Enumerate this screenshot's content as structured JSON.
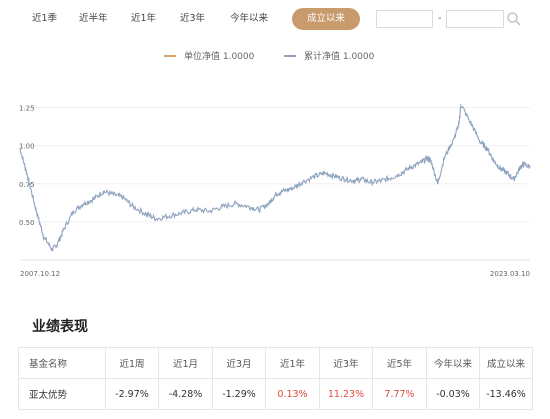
{
  "periods": {
    "items": [
      "近1季",
      "近半年",
      "近1年",
      "近3年",
      "今年以来",
      "成立以来"
    ],
    "active_index": 5,
    "active_color": "#c89a6c"
  },
  "date_range": {
    "start": "",
    "end": "",
    "separator": "-",
    "search_icon": "search-icon"
  },
  "legend": {
    "unit_nav": "单位净值 1.0000",
    "cum_nav": "累计净值 1.0000",
    "unit_nav_color": "#d9a46e",
    "cum_nav_color": "#8fa3bf"
  },
  "chart_data": {
    "type": "line",
    "y_ticks": [
      "1.25",
      "1.00",
      "0.75",
      "0.50"
    ],
    "ylim": [
      0.25,
      1.3
    ],
    "x_start_label": "2007.10.12",
    "x_end_label": "2023.03.10",
    "grid": true,
    "series": [
      {
        "name": "累计净值",
        "color": "#8fa3bf",
        "x": [
          2007.78,
          2007.95,
          2008.1,
          2008.3,
          2008.5,
          2008.75,
          2008.9,
          2009.1,
          2009.4,
          2009.7,
          2010.0,
          2010.3,
          2010.6,
          2010.9,
          2011.2,
          2011.6,
          2011.9,
          2012.3,
          2012.7,
          2013.1,
          2013.5,
          2013.9,
          2014.3,
          2014.7,
          2015.0,
          2015.3,
          2015.5,
          2015.7,
          2016.0,
          2016.3,
          2016.7,
          2017.0,
          2017.3,
          2017.6,
          2017.9,
          2018.1,
          2018.4,
          2018.7,
          2019.0,
          2019.3,
          2019.6,
          2019.9,
          2020.1,
          2020.2,
          2020.4,
          2020.6,
          2020.9,
          2021.05,
          2021.1,
          2021.4,
          2021.7,
          2021.9,
          2022.1,
          2022.3,
          2022.5,
          2022.7,
          2022.9,
          2023.0,
          2023.19
        ],
        "y": [
          0.98,
          0.85,
          0.72,
          0.55,
          0.4,
          0.32,
          0.35,
          0.45,
          0.57,
          0.62,
          0.65,
          0.7,
          0.68,
          0.66,
          0.6,
          0.55,
          0.52,
          0.54,
          0.56,
          0.58,
          0.57,
          0.6,
          0.62,
          0.6,
          0.58,
          0.62,
          0.68,
          0.7,
          0.72,
          0.76,
          0.8,
          0.82,
          0.8,
          0.78,
          0.77,
          0.78,
          0.76,
          0.77,
          0.79,
          0.82,
          0.86,
          0.89,
          0.92,
          0.9,
          0.75,
          0.92,
          1.05,
          1.15,
          1.27,
          1.15,
          1.02,
          0.98,
          0.9,
          0.85,
          0.82,
          0.78,
          0.86,
          0.88,
          0.86
        ]
      }
    ]
  },
  "performance": {
    "title": "业绩表现",
    "headers": [
      "基金名称",
      "近1周",
      "近1月",
      "近3月",
      "近1年",
      "近3年",
      "近5年",
      "今年以来",
      "成立以来"
    ],
    "row": {
      "name": "亚太优势",
      "values": [
        "-2.97%",
        "-4.28%",
        "-1.29%",
        "0.13%",
        "11.23%",
        "7.77%",
        "-0.03%",
        "-13.46%"
      ]
    },
    "positive_color": "#e04a3a"
  }
}
